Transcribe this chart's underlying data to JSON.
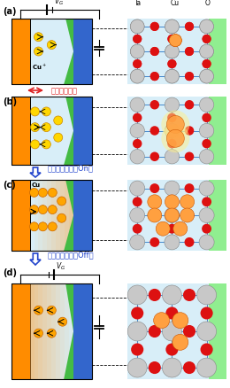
{
  "fig_width": 2.6,
  "fig_height": 4.38,
  "dpi": 100,
  "bg_color": "#ffffff",
  "orange_color": "#FF8C00",
  "gold_color": "#FFD700",
  "cu_ion_color": "#FFA500",
  "blue_color": "#3366CC",
  "light_blue_bg": "#D8EEF8",
  "green_color": "#44BB44",
  "light_green_color": "#90EE90",
  "ta_color": "#C8C8C8",
  "cu_color": "#FFA040",
  "o_color": "#DD1111",
  "bond_color": "#4488CC",
  "arrow_blue": "#2244CC",
  "arrow_red": "#DD2222",
  "label_enzan": "演算素子動作",
  "label_kioku_on": "記憶素子動作（On）",
  "label_kioku_off": "記憶素子動作（Off）"
}
